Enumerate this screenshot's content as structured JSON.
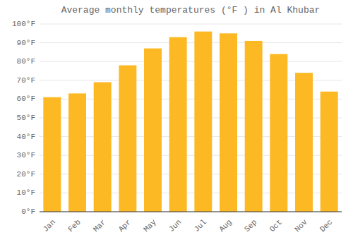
{
  "chart_data": {
    "type": "bar",
    "title": "Average monthly temperatures (°F ) in Al Khubar",
    "categories": [
      "Jan",
      "Feb",
      "Mar",
      "Apr",
      "May",
      "Jun",
      "Jul",
      "Aug",
      "Sep",
      "Oct",
      "Nov",
      "Dec"
    ],
    "values": [
      61,
      63,
      69,
      78,
      87,
      93,
      96,
      95,
      91,
      84,
      74,
      64
    ],
    "color": "#FDB924",
    "ylim": [
      0,
      100
    ],
    "yticks": [
      {
        "value": 0,
        "label": "0°F"
      },
      {
        "value": 10,
        "label": "10°F"
      },
      {
        "value": 20,
        "label": "20°F"
      },
      {
        "value": 30,
        "label": "30°F"
      },
      {
        "value": 40,
        "label": "40°F"
      },
      {
        "value": 50,
        "label": "50°F"
      },
      {
        "value": 60,
        "label": "60°F"
      },
      {
        "value": 70,
        "label": "70°F"
      },
      {
        "value": 80,
        "label": "80°F"
      },
      {
        "value": 90,
        "label": "90°F"
      },
      {
        "value": 100,
        "label": "100°F"
      }
    ],
    "grid": true
  }
}
